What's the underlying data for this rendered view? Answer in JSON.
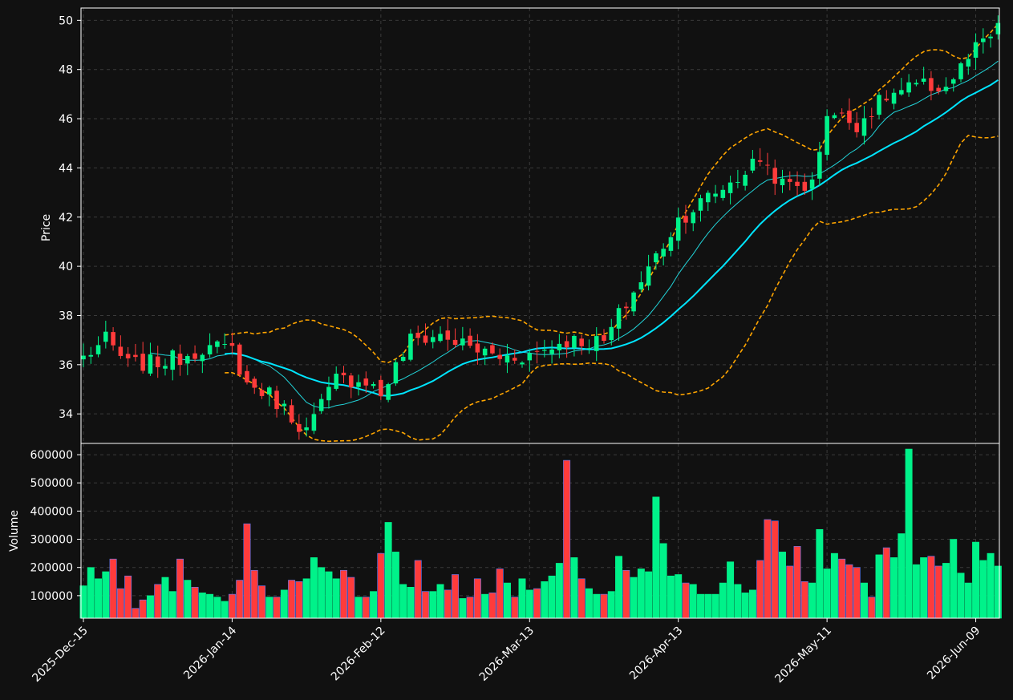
{
  "chart_data": {
    "type": "candlestick",
    "colors": {
      "up": "#00f28a",
      "down": "#ff3b3b",
      "sma_fast": "#22d3d8",
      "sma_slow": "#00e5ff",
      "bands": "#ffa500",
      "background": "#111111",
      "grid": "#3a3a3a",
      "text": "#ffffff"
    },
    "price_panel": {
      "ylabel": "Price",
      "ylim": [
        32.8,
        50.5
      ],
      "yticks": [
        "34",
        "36",
        "38",
        "40",
        "42",
        "44",
        "46",
        "48",
        "50"
      ],
      "grid": true
    },
    "volume_panel": {
      "ylabel": "Volume",
      "ylim": [
        20000,
        640000
      ],
      "yticks": [
        "100000",
        "200000",
        "300000",
        "400000",
        "500000",
        "600000"
      ],
      "grid": true
    },
    "x_tick_labels": [
      {
        "label": "2025-Dec-15",
        "index": 0
      },
      {
        "label": "2026-Jan-14",
        "index": 20
      },
      {
        "label": "2026-Feb-12",
        "index": 40
      },
      {
        "label": "2026-Mar-13",
        "index": 60
      },
      {
        "label": "2026-Apr-13",
        "index": 80
      },
      {
        "label": "2026-May-11",
        "index": 100
      },
      {
        "label": "2026-Jun-09",
        "index": 120
      }
    ],
    "n_bars": 124,
    "close_anchors": [
      [
        0,
        36.3
      ],
      [
        3,
        37.0
      ],
      [
        6,
        36.0
      ],
      [
        10,
        36.1
      ],
      [
        13,
        36.3
      ],
      [
        16,
        36.7
      ],
      [
        20,
        36.6
      ],
      [
        22,
        35.2
      ],
      [
        25,
        34.8
      ],
      [
        30,
        33.3
      ],
      [
        34,
        35.4
      ],
      [
        38,
        35.4
      ],
      [
        40,
        34.8
      ],
      [
        44,
        37.0
      ],
      [
        48,
        37.2
      ],
      [
        52,
        36.7
      ],
      [
        56,
        36.3
      ],
      [
        60,
        36.4
      ],
      [
        65,
        37.0
      ],
      [
        70,
        36.9
      ],
      [
        72,
        38.0
      ],
      [
        76,
        39.9
      ],
      [
        80,
        41.9
      ],
      [
        84,
        42.8
      ],
      [
        88,
        43.6
      ],
      [
        91,
        44.4
      ],
      [
        94,
        43.3
      ],
      [
        98,
        43.3
      ],
      [
        100,
        46.3
      ],
      [
        104,
        45.8
      ],
      [
        108,
        46.9
      ],
      [
        112,
        47.3
      ],
      [
        116,
        47.3
      ],
      [
        120,
        48.8
      ],
      [
        123,
        49.6
      ]
    ],
    "volume_values": [
      135000,
      200000,
      160000,
      185000,
      230000,
      125000,
      170000,
      55000,
      85000,
      100000,
      140000,
      165000,
      115000,
      230000,
      155000,
      130000,
      110000,
      105000,
      95000,
      80000,
      105000,
      155000,
      355000,
      190000,
      135000,
      95000,
      95000,
      120000,
      155000,
      150000,
      160000,
      235000,
      200000,
      185000,
      160000,
      190000,
      165000,
      95000,
      95000,
      115000,
      250000,
      360000,
      255000,
      140000,
      130000,
      225000,
      115000,
      115000,
      140000,
      120000,
      175000,
      90000,
      95000,
      160000,
      105000,
      110000,
      195000,
      145000,
      95000,
      160000,
      120000,
      125000,
      150000,
      170000,
      215000,
      580000,
      235000,
      160000,
      125000,
      105000,
      105000,
      115000,
      240000,
      190000,
      165000,
      195000,
      185000,
      450000,
      285000,
      170000,
      175000,
      145000,
      140000,
      105000,
      105000,
      105000,
      145000,
      220000,
      140000,
      110000,
      120000,
      225000,
      370000,
      365000,
      255000,
      205000,
      275000,
      150000,
      145000,
      335000,
      195000,
      250000,
      230000,
      210000,
      200000,
      145000,
      95000,
      245000,
      270000,
      235000,
      320000,
      620000,
      210000,
      235000,
      240000,
      205000,
      215000,
      300000,
      180000,
      145000,
      290000,
      225000,
      250000,
      205000
    ],
    "seed": 7
  }
}
